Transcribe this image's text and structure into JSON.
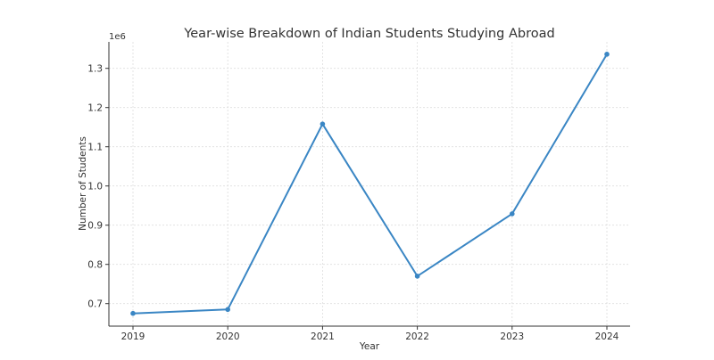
{
  "chart_data": {
    "type": "line",
    "title": "Year-wise Breakdown of Indian Students Studying Abroad",
    "xlabel": "Year",
    "ylabel": "Number of Students",
    "y_offset_label": "1e6",
    "categories": [
      "2019",
      "2020",
      "2021",
      "2022",
      "2023",
      "2024"
    ],
    "series": [
      {
        "values": [
          675000,
          685000,
          1158000,
          770000,
          929000,
          1336000
        ]
      }
    ],
    "yticks": [
      "0.7",
      "0.8",
      "0.9",
      "1.0",
      "1.1",
      "1.2",
      "1.3"
    ],
    "ytick_values": [
      700000,
      800000,
      900000,
      1000000,
      1100000,
      1200000,
      1300000
    ],
    "ylim": [
      643000,
      1372000
    ],
    "grid": true,
    "markers": true,
    "line_color": "#3a86c4"
  }
}
